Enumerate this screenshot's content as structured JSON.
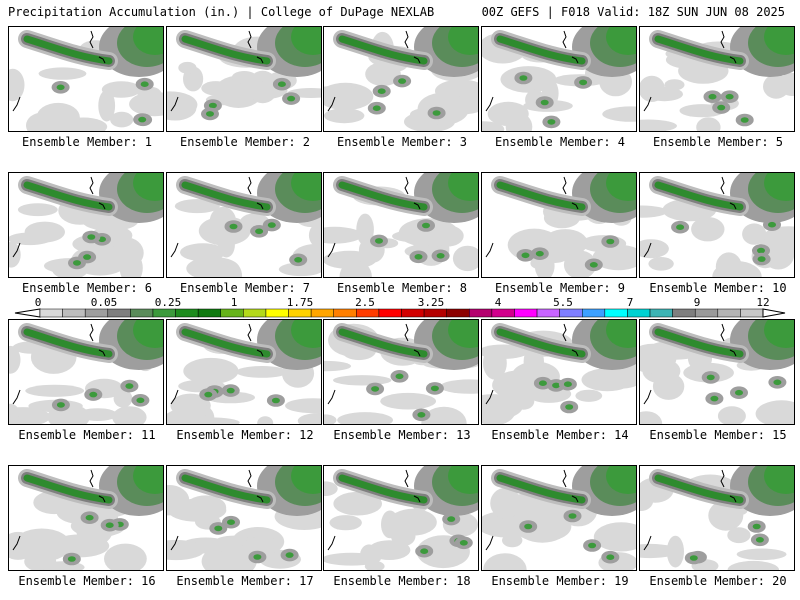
{
  "header": {
    "left": "Precipitation Accumulation (in.) | College of DuPage NEXLAB",
    "right": "00Z GEFS | F018 Valid: 18Z SUN JUN 08 2025"
  },
  "panel_label_prefix": "Ensemble Member: ",
  "members": [
    {
      "label": "Ensemble Member: 1"
    },
    {
      "label": "Ensemble Member: 2"
    },
    {
      "label": "Ensemble Member: 3"
    },
    {
      "label": "Ensemble Member: 4"
    },
    {
      "label": "Ensemble Member: 5"
    },
    {
      "label": "Ensemble Member: 6"
    },
    {
      "label": "Ensemble Member: 7"
    },
    {
      "label": "Ensemble Member: 8"
    },
    {
      "label": "Ensemble Member: 9"
    },
    {
      "label": "Ensemble Member: 10"
    },
    {
      "label": "Ensemble Member: 11"
    },
    {
      "label": "Ensemble Member: 12"
    },
    {
      "label": "Ensemble Member: 13"
    },
    {
      "label": "Ensemble Member: 14"
    },
    {
      "label": "Ensemble Member: 15"
    },
    {
      "label": "Ensemble Member: 16"
    },
    {
      "label": "Ensemble Member: 17"
    },
    {
      "label": "Ensemble Member: 18"
    },
    {
      "label": "Ensemble Member: 19"
    },
    {
      "label": "Ensemble Member: 20"
    }
  ],
  "colorbar": {
    "tick_labels": [
      "0",
      "0.05",
      "0.25",
      "1",
      "1.75",
      "2.5",
      "3.25",
      "4",
      "5.5",
      "7",
      "9",
      "12"
    ],
    "colors": [
      "#d9d9d9",
      "#bdbdbd",
      "#9e9e9e",
      "#7f7f7f",
      "#5a8c5a",
      "#3c9a3c",
      "#1e8c1e",
      "#0f7a0f",
      "#66b31a",
      "#b3d91a",
      "#ffff00",
      "#ffd200",
      "#ffa500",
      "#ff7f00",
      "#ff3c00",
      "#ff0000",
      "#d20000",
      "#b40000",
      "#8c0000",
      "#b4006e",
      "#d2008c",
      "#ff00ff",
      "#c864ff",
      "#7f7fff",
      "#3ca0ff",
      "#00ffff",
      "#00d2d2",
      "#3cb4b4",
      "#7f7f7f",
      "#9a9a9a",
      "#b4b4b4",
      "#c8c8c8"
    ]
  }
}
